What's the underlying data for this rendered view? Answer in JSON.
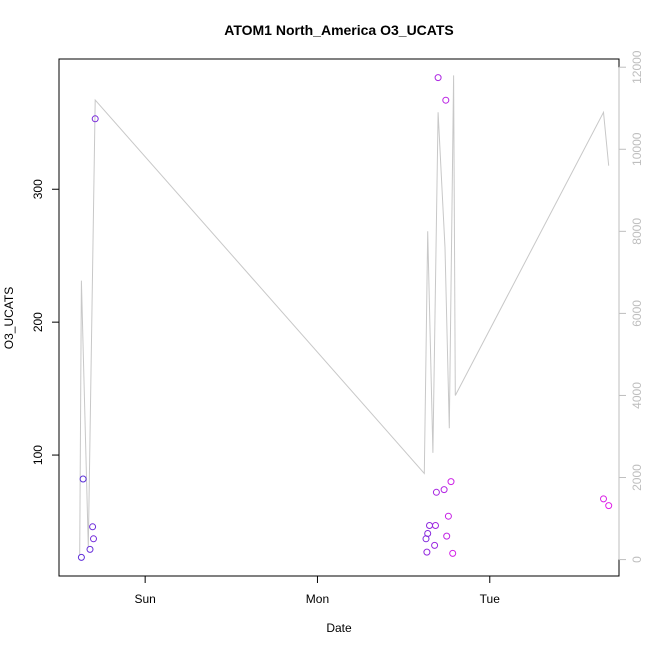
{
  "chart_data": {
    "type": "scatter",
    "title": "ATOM1 North_America O3_UCATS",
    "xlabel": "Date",
    "ylabel": "O3_UCATS",
    "x_axis": {
      "unit": "days",
      "range": [
        0,
        3.25
      ],
      "ticks": [
        {
          "value": 0.5,
          "label": "Sun"
        },
        {
          "value": 1.5,
          "label": "Mon"
        },
        {
          "value": 2.5,
          "label": "Tue"
        }
      ]
    },
    "y_left": {
      "range": [
        9,
        398
      ],
      "ticks": [
        100,
        200,
        300
      ]
    },
    "y_right": {
      "range": [
        -400,
        12200
      ],
      "ticks": [
        0,
        2000,
        4000,
        6000,
        8000,
        10000,
        12000
      ],
      "color": "#bebebe"
    },
    "series": [
      {
        "type": "line",
        "axis": "right",
        "color": "#c8c8c8",
        "points": [
          {
            "x": 0.12,
            "y": 100
          },
          {
            "x": 0.13,
            "y": 6800
          },
          {
            "x": 0.17,
            "y": 300
          },
          {
            "x": 0.21,
            "y": 11200
          },
          {
            "x": 2.12,
            "y": 2100
          },
          {
            "x": 2.13,
            "y": 5000
          },
          {
            "x": 2.14,
            "y": 8000
          },
          {
            "x": 2.17,
            "y": 2600
          },
          {
            "x": 2.2,
            "y": 10900
          },
          {
            "x": 2.24,
            "y": 7600
          },
          {
            "x": 2.265,
            "y": 3200
          },
          {
            "x": 2.29,
            "y": 11800
          },
          {
            "x": 2.3,
            "y": 4000
          },
          {
            "x": 3.16,
            "y": 10900
          },
          {
            "x": 3.19,
            "y": 9600
          }
        ]
      },
      {
        "type": "scatter",
        "axis": "left",
        "color_start": "#5a2fd8",
        "color_end": "#e020e8",
        "points": [
          {
            "x": 0.14,
            "y": 82
          },
          {
            "x": 0.13,
            "y": 23
          },
          {
            "x": 0.18,
            "y": 29
          },
          {
            "x": 0.195,
            "y": 46
          },
          {
            "x": 0.2,
            "y": 37
          },
          {
            "x": 0.21,
            "y": 353
          },
          {
            "x": 2.13,
            "y": 37
          },
          {
            "x": 2.14,
            "y": 41
          },
          {
            "x": 2.15,
            "y": 47
          },
          {
            "x": 2.135,
            "y": 27
          },
          {
            "x": 2.18,
            "y": 32
          },
          {
            "x": 2.185,
            "y": 47
          },
          {
            "x": 2.19,
            "y": 72
          },
          {
            "x": 2.2,
            "y": 384
          },
          {
            "x": 2.235,
            "y": 74
          },
          {
            "x": 2.245,
            "y": 367
          },
          {
            "x": 2.25,
            "y": 39
          },
          {
            "x": 2.26,
            "y": 54
          },
          {
            "x": 2.275,
            "y": 80
          },
          {
            "x": 2.285,
            "y": 26
          },
          {
            "x": 3.16,
            "y": 67
          },
          {
            "x": 3.19,
            "y": 62
          }
        ]
      }
    ]
  }
}
